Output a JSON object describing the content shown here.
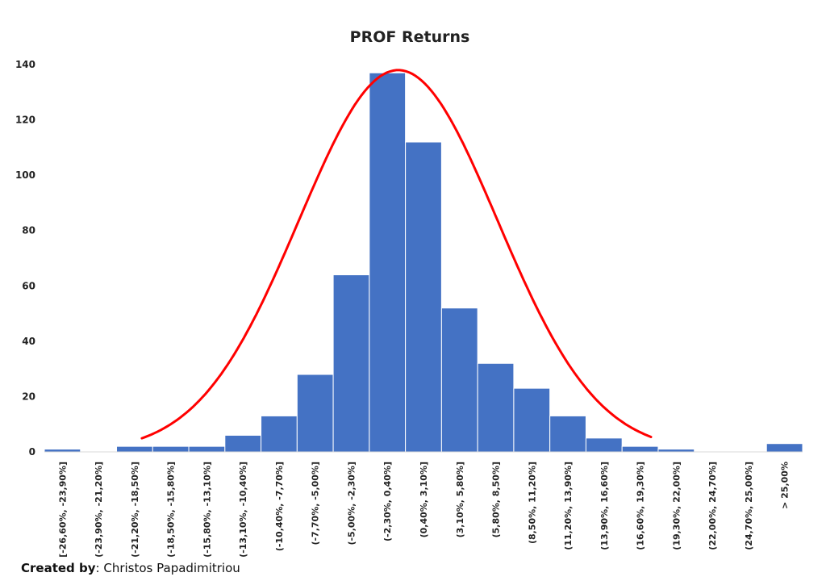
{
  "chart_data": {
    "type": "bar",
    "title": "PROF Returns",
    "xlabel": "",
    "ylabel": "",
    "ylim": [
      0,
      140
    ],
    "yticks": [
      0,
      20,
      40,
      60,
      80,
      100,
      120,
      140
    ],
    "grid": false,
    "categories": [
      "[-26,60%, -23,90%]",
      "(-23,90%, -21,20%]",
      "(-21,20%, -18,50%]",
      "(-18,50%, -15,80%]",
      "(-15,80%, -13,10%]",
      "(-13,10%, -10,40%]",
      "(-10,40%, -7,70%]",
      "(-7,70%, -5,00%]",
      "(-5,00%, -2,30%]",
      "(-2,30%, 0,40%]",
      "(0,40%, 3,10%]",
      "(3,10%, 5,80%]",
      "(5,80%, 8,50%]",
      "(8,50%, 11,20%]",
      "(11,20%, 13,90%]",
      "(13,90%, 16,60%]",
      "(16,60%, 19,30%]",
      "(19,30%, 22,00%]",
      "(22,00%, 24,70%]",
      "(24,70%, 25,00%]",
      "> 25,00%"
    ],
    "values": [
      1,
      0,
      2,
      2,
      2,
      6,
      13,
      28,
      64,
      137,
      112,
      52,
      32,
      23,
      13,
      5,
      2,
      1,
      0,
      0,
      3
    ],
    "bar_color": "#4472C4",
    "curve": {
      "type": "normal",
      "color": "#FF0000",
      "peak": 138,
      "center_index": 9.8,
      "sd_bins": 2.75,
      "start_index": 2.7,
      "end_index": 16.8
    }
  },
  "credit": {
    "label": "Created by",
    "separator": ": ",
    "name": "Christos Papadimitriou"
  }
}
